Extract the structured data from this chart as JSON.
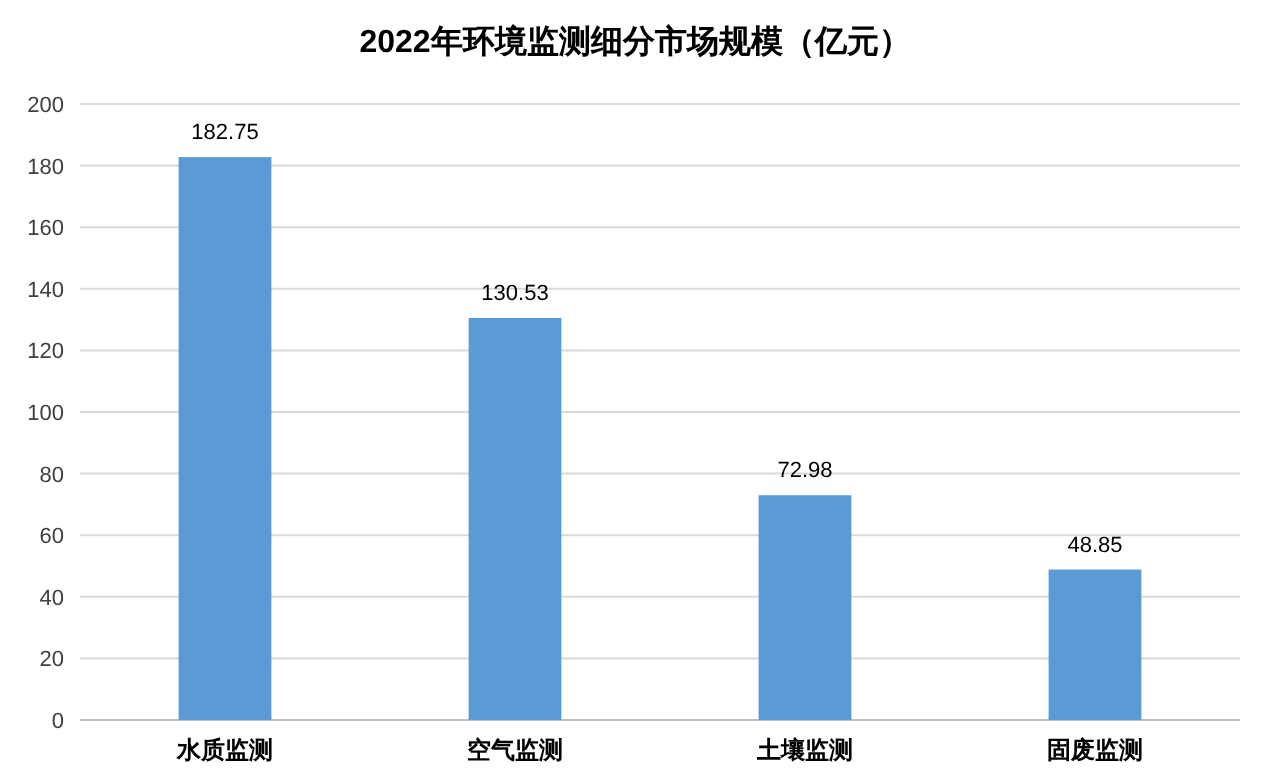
{
  "chart_data": {
    "type": "bar",
    "title": "2022年环境监测细分市场规模（亿元）",
    "categories": [
      "水质监测",
      "空气监测",
      "土壤监测",
      "固废监测"
    ],
    "values": [
      182.75,
      130.53,
      72.98,
      48.85
    ],
    "color": "#5b9bd5",
    "ylim": [
      0,
      200
    ],
    "yticks": [
      0,
      20,
      40,
      60,
      80,
      100,
      120,
      140,
      160,
      180,
      200
    ],
    "grid": "y",
    "data_labels": true
  }
}
